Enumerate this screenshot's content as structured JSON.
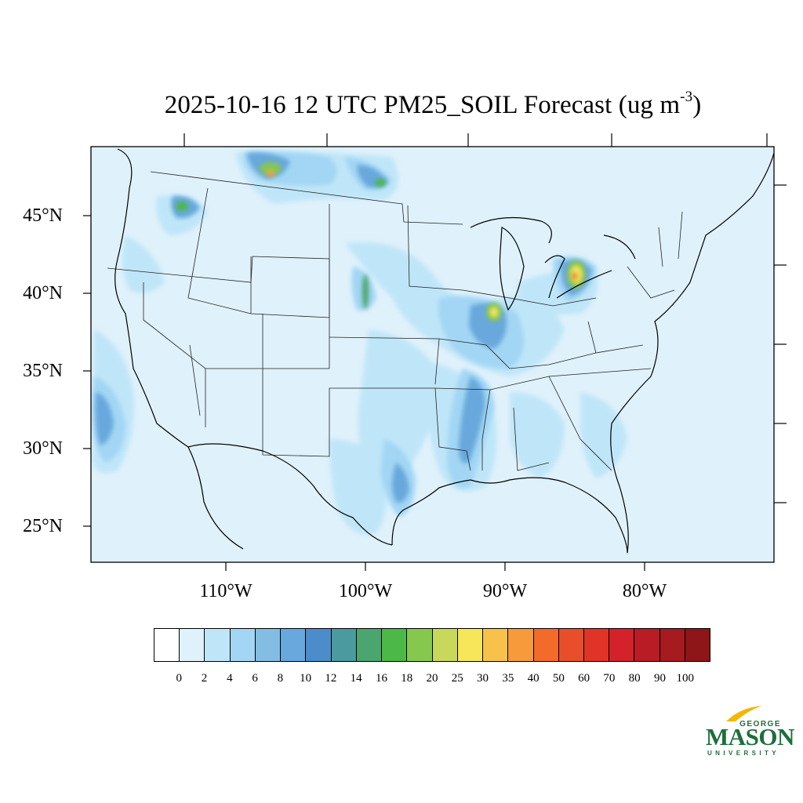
{
  "title": {
    "text": "2025-10-16 12 UTC PM25_SOIL Forecast (ug m",
    "superscript": "-3",
    "closing": ")"
  },
  "map": {
    "lon_range": [
      -120.2,
      -71.2
    ],
    "lat_range": [
      22.5,
      49.5
    ],
    "lat_labels": [
      "45°N",
      "40°N",
      "35°N",
      "30°N",
      "25°N"
    ],
    "lon_labels": [
      "110°W",
      "100°W",
      "90°W",
      "80°W"
    ],
    "background_color": "#dff1fb"
  },
  "colorbar": {
    "levels": [
      "0",
      "2",
      "4",
      "6",
      "8",
      "10",
      "12",
      "14",
      "16",
      "18",
      "20",
      "25",
      "30",
      "35",
      "40",
      "50",
      "60",
      "70",
      "80",
      "90",
      "100"
    ],
    "colors": [
      "#ffffff",
      "#dff1fb",
      "#bfe6f8",
      "#a2d6f4",
      "#84bde3",
      "#68a8dc",
      "#4b8dcb",
      "#4a9aa0",
      "#4aa66e",
      "#4cb848",
      "#86c74e",
      "#c8d85a",
      "#f7e65a",
      "#f7c24a",
      "#f79a3c",
      "#f26b2b",
      "#e84e2a",
      "#e03428",
      "#d3222a",
      "#b91c24",
      "#a51b1f",
      "#8e1518"
    ]
  },
  "logo": {
    "top": "GEORGE",
    "main": "MASON",
    "sub": "UNIVERSITY",
    "color": "#1d6f3b",
    "accent": "#f2b705"
  }
}
